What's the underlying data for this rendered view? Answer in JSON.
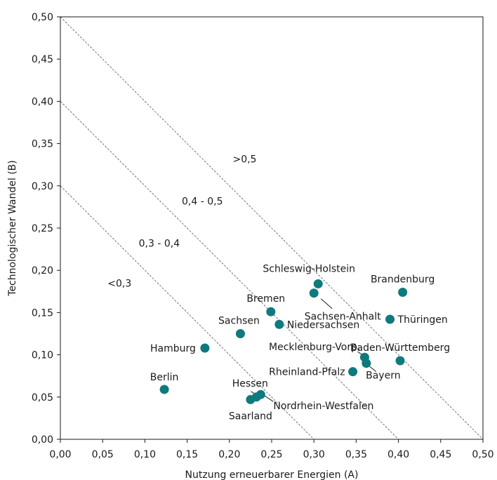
{
  "chart_data": {
    "type": "scatter",
    "xlabel": "Nutzung erneuerbarer Energien (A)",
    "ylabel": "Technologischer Wandel (B)",
    "xlim": [
      0,
      0.5
    ],
    "ylim": [
      0,
      0.5
    ],
    "x_ticks": [
      "0,00",
      "0,05",
      "0,10",
      "0,15",
      "0,20",
      "0,25",
      "0,30",
      "0,35",
      "0,40",
      "0,45",
      "0,50"
    ],
    "y_ticks": [
      "0,00",
      "0,05",
      "0,10",
      "0,15",
      "0,20",
      "0,25",
      "0,30",
      "0,35",
      "0,40",
      "0,45",
      "0,50"
    ],
    "grid": false,
    "point_color": "#0e7a7e",
    "iso_lines": [
      0.3,
      0.4,
      0.5
    ],
    "zones": [
      {
        "label": "<0,3",
        "x": 0.07,
        "y": 0.185
      },
      {
        "label": "0,3 - 0,4",
        "x": 0.117,
        "y": 0.232
      },
      {
        "label": "0,4 - 0,5",
        "x": 0.168,
        "y": 0.282
      },
      {
        "label": ">0,5",
        "x": 0.218,
        "y": 0.332
      }
    ],
    "points": [
      {
        "name": "Berlin",
        "x": 0.123,
        "y": 0.059
      },
      {
        "name": "Hamburg",
        "x": 0.171,
        "y": 0.108
      },
      {
        "name": "Sachsen",
        "x": 0.213,
        "y": 0.125
      },
      {
        "name": "Bremen",
        "x": 0.249,
        "y": 0.151
      },
      {
        "name": "Niedersachsen",
        "x": 0.259,
        "y": 0.136
      },
      {
        "name": "Schleswig-Holstein",
        "x": 0.305,
        "y": 0.184
      },
      {
        "name": "Sachsen-Anhalt",
        "x": 0.3,
        "y": 0.173
      },
      {
        "name": "Brandenburg",
        "x": 0.405,
        "y": 0.174
      },
      {
        "name": "Thüringen",
        "x": 0.39,
        "y": 0.142
      },
      {
        "name": "Mecklenburg-Vorp.",
        "x": 0.36,
        "y": 0.097
      },
      {
        "name": "Baden-Württemberg",
        "x": 0.402,
        "y": 0.093
      },
      {
        "name": "Bayern",
        "x": 0.362,
        "y": 0.09
      },
      {
        "name": "Rheinland-Pfalz",
        "x": 0.346,
        "y": 0.08
      },
      {
        "name": "Hessen",
        "x": 0.232,
        "y": 0.05
      },
      {
        "name": "Nordrhein-Westfalen",
        "x": 0.237,
        "y": 0.053
      },
      {
        "name": "Saarland",
        "x": 0.225,
        "y": 0.047
      }
    ]
  }
}
